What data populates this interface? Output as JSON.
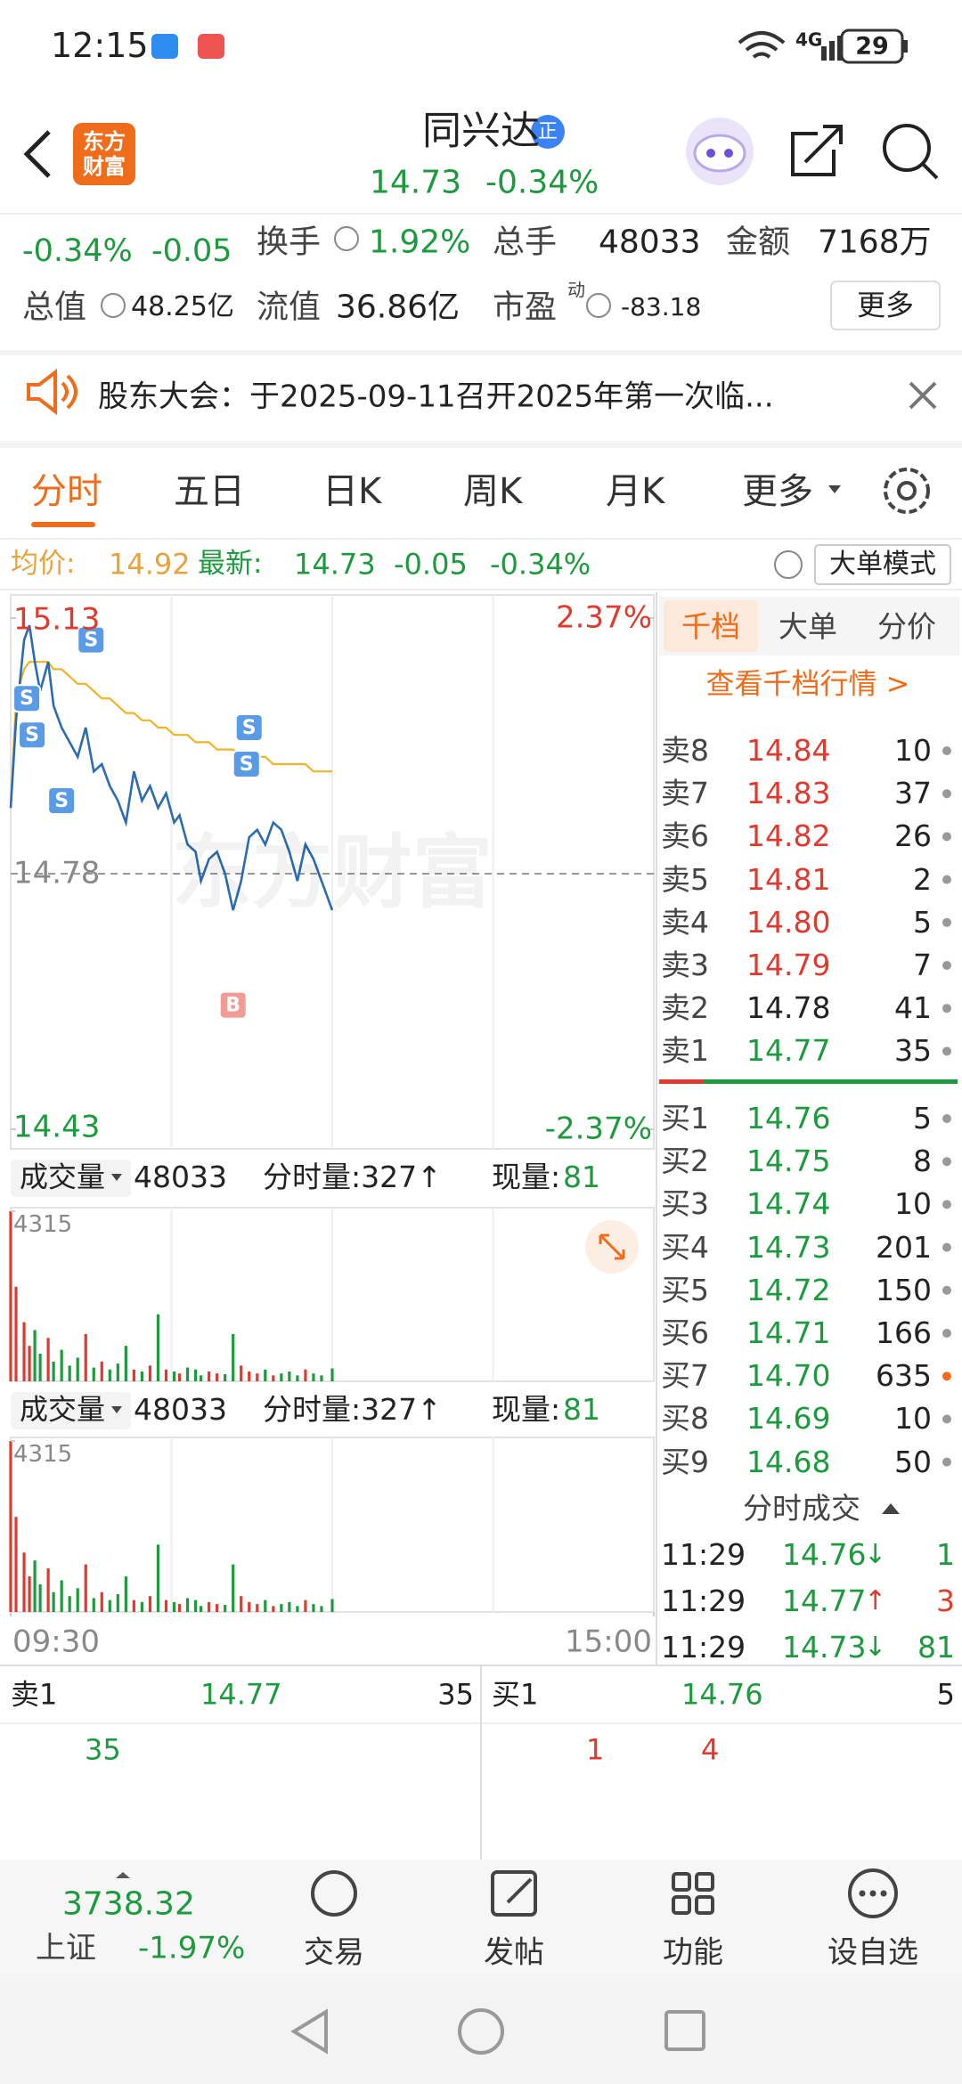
{
  "status_bar": {
    "time": "12:15",
    "network": "4G",
    "battery": "29"
  },
  "header": {
    "logo": "东方财富",
    "title": "同兴达",
    "badge": "正",
    "price": "14.73",
    "change_pct": "-0.34%"
  },
  "stats": {
    "change_pct": "-0.34%",
    "change": "-0.05",
    "turnover_label": "换手",
    "turnover": "1.92%",
    "volume_label": "总手",
    "volume": "48033",
    "amount_label": "金额",
    "amount": "7168万",
    "market_cap_label": "总值",
    "market_cap": "48.25亿",
    "float_cap_label": "流值",
    "float_cap": "36.86亿",
    "pe_label": "市盈",
    "pe_note": "动",
    "pe": "-83.18",
    "more": "更多"
  },
  "notice": "股东大会：于2025-09-11召开2025年第一次临...",
  "tabs": [
    "分时",
    "五日",
    "日K",
    "周K",
    "月K",
    "更多"
  ],
  "quote_bar": {
    "avg_label": "均价:",
    "avg": "14.92",
    "last_label": "最新:",
    "last": "14.73",
    "change": "-0.05",
    "change_pct": "-0.34%",
    "mode": "大单模式"
  },
  "chart_watermark": "东方财富",
  "chart_data": [
    {
      "type": "line",
      "x": [
        0,
        2,
        5,
        7,
        9,
        11,
        14,
        16,
        19,
        22,
        25,
        28,
        31,
        34,
        37,
        40,
        43,
        46,
        49,
        52,
        55,
        58,
        61,
        63,
        66,
        69,
        71,
        74,
        77,
        80,
        83,
        86,
        89,
        92,
        95,
        98,
        101,
        104,
        107,
        110,
        113,
        116,
        120
      ],
      "series": [
        {
          "color": "#2b6cb0",
          "values": [
            14.87,
            14.99,
            15.1,
            15.12,
            15.07,
            15.03,
            15.07,
            15.01,
            14.98,
            14.96,
            14.94,
            14.98,
            14.92,
            14.93,
            14.9,
            14.88,
            14.85,
            14.92,
            14.88,
            14.9,
            14.87,
            14.89,
            14.85,
            14.86,
            14.82,
            14.81,
            14.77,
            14.8,
            14.81,
            14.78,
            14.73,
            14.77,
            14.83,
            14.84,
            14.82,
            14.85,
            14.84,
            14.81,
            14.77,
            14.82,
            14.8,
            14.77,
            14.73
          ]
        },
        {
          "color": "#f0b429",
          "values": [
            14.87,
            15.02,
            15.06,
            15.07,
            15.07,
            15.07,
            15.07,
            15.06,
            15.06,
            15.05,
            15.04,
            15.04,
            15.03,
            15.02,
            15.02,
            15.01,
            15.0,
            15.0,
            14.99,
            14.99,
            14.98,
            14.98,
            14.97,
            14.97,
            14.97,
            14.96,
            14.96,
            14.96,
            14.95,
            14.95,
            14.95,
            14.94,
            14.94,
            14.94,
            14.94,
            14.93,
            14.93,
            14.93,
            14.93,
            14.93,
            14.92,
            14.92,
            14.92
          ]
        }
      ],
      "xlim": [
        0,
        240
      ],
      "ylim": [
        14.43,
        15.13
      ],
      "yticks": [
        15.13,
        14.78,
        14.43
      ],
      "y2lim": [
        -2.37,
        2.37
      ],
      "y2ticks": [
        {
          "value": 2.37,
          "label": "2.37%"
        },
        {
          "value": -2.37,
          "label": "-2.37%"
        }
      ],
      "markers": [
        {
          "label": "S",
          "x": 6,
          "y": 15.02
        },
        {
          "label": "S",
          "x": 8,
          "y": 14.97
        },
        {
          "label": "S",
          "x": 19,
          "y": 14.88
        },
        {
          "label": "S",
          "x": 30,
          "y": 15.1
        },
        {
          "label": "S",
          "x": 89,
          "y": 14.98
        },
        {
          "label": "S",
          "x": 88,
          "y": 14.93
        },
        {
          "label": "B",
          "x": 83,
          "y": 14.6
        }
      ]
    },
    {
      "type": "bar",
      "title": "成交量",
      "total": "48033",
      "minute_volume": "分时量:327↑",
      "current_label": "现量:",
      "current": "81",
      "x": [
        0,
        2,
        5,
        7,
        9,
        11,
        14,
        16,
        19,
        22,
        25,
        28,
        31,
        34,
        37,
        40,
        43,
        46,
        49,
        52,
        55,
        58,
        61,
        63,
        66,
        69,
        71,
        74,
        77,
        80,
        83,
        86,
        89,
        92,
        95,
        98,
        101,
        104,
        107,
        110,
        113,
        116,
        120
      ],
      "values": [
        4315,
        2400,
        1500,
        900,
        1300,
        700,
        1100,
        500,
        800,
        400,
        600,
        1200,
        350,
        500,
        300,
        450,
        900,
        300,
        250,
        400,
        1700,
        300,
        250,
        200,
        350,
        300,
        150,
        250,
        200,
        180,
        1200,
        400,
        250,
        200,
        300,
        150,
        200,
        250,
        150,
        300,
        200,
        150,
        327
      ],
      "up_color": "#e03a2f",
      "down_color": "#1d9a3e",
      "xlim": [
        0,
        240
      ],
      "ylim": [
        0,
        4315
      ],
      "yticks": [
        4315
      ]
    },
    {
      "type": "bar",
      "title": "成交量",
      "total": "48033",
      "minute_volume": "分时量:327↑",
      "current_label": "现量:",
      "current": "81",
      "x": [
        0,
        2,
        5,
        7,
        9,
        11,
        14,
        16,
        19,
        22,
        25,
        28,
        31,
        34,
        37,
        40,
        43,
        46,
        49,
        52,
        55,
        58,
        61,
        63,
        66,
        69,
        71,
        74,
        77,
        80,
        83,
        86,
        89,
        92,
        95,
        98,
        101,
        104,
        107,
        110,
        113,
        116,
        120
      ],
      "values": [
        4315,
        2400,
        1500,
        900,
        1300,
        700,
        1100,
        500,
        800,
        400,
        600,
        1200,
        350,
        500,
        300,
        450,
        900,
        300,
        250,
        400,
        1700,
        300,
        250,
        200,
        350,
        300,
        150,
        250,
        200,
        180,
        1200,
        400,
        250,
        200,
        300,
        150,
        200,
        250,
        150,
        300,
        200,
        150,
        327
      ],
      "up_color": "#e03a2f",
      "down_color": "#1d9a3e",
      "xlim": [
        0,
        240
      ],
      "ylim": [
        0,
        4315
      ],
      "yticks": [
        4315
      ],
      "xticks": [
        {
          "value": 0,
          "label": "09:30"
        },
        {
          "value": 240,
          "label": "15:00"
        }
      ]
    }
  ],
  "order_book": {
    "tabs": [
      "千档",
      "大单",
      "分价"
    ],
    "link": "查看千档行情 >",
    "asks": [
      {
        "label": "卖8",
        "price": "14.84",
        "qty": "10"
      },
      {
        "label": "卖7",
        "price": "14.83",
        "qty": "37"
      },
      {
        "label": "卖6",
        "price": "14.82",
        "qty": "26"
      },
      {
        "label": "卖5",
        "price": "14.81",
        "qty": "2"
      },
      {
        "label": "卖4",
        "price": "14.80",
        "qty": "5"
      },
      {
        "label": "卖3",
        "price": "14.79",
        "qty": "7"
      },
      {
        "label": "卖2",
        "price": "14.78",
        "qty": "41"
      },
      {
        "label": "卖1",
        "price": "14.77",
        "qty": "35"
      }
    ],
    "bids": [
      {
        "label": "买1",
        "price": "14.76",
        "qty": "5"
      },
      {
        "label": "买2",
        "price": "14.75",
        "qty": "8"
      },
      {
        "label": "买3",
        "price": "14.74",
        "qty": "10"
      },
      {
        "label": "买4",
        "price": "14.73",
        "qty": "201"
      },
      {
        "label": "买5",
        "price": "14.72",
        "qty": "150"
      },
      {
        "label": "买6",
        "price": "14.71",
        "qty": "166"
      },
      {
        "label": "买7",
        "price": "14.70",
        "qty": "635",
        "highlight": true
      },
      {
        "label": "买8",
        "price": "14.69",
        "qty": "10"
      },
      {
        "label": "买9",
        "price": "14.68",
        "qty": "50"
      }
    ]
  },
  "trades": {
    "title": "分时成交",
    "rows": [
      {
        "time": "11:29",
        "price": "14.76",
        "dir": "↓",
        "qty": "1"
      },
      {
        "time": "11:29",
        "price": "14.77",
        "dir": "↑",
        "qty": "3"
      },
      {
        "time": "11:29",
        "price": "14.73",
        "dir": "↓",
        "qty": "81"
      }
    ]
  },
  "bottom_quote": {
    "ask": {
      "label": "卖1",
      "price": "14.77",
      "qty": "35"
    },
    "bid": {
      "label": "买1",
      "price": "14.76",
      "qty": "5"
    },
    "ask_detail": [
      "35"
    ],
    "bid_detail": [
      "1",
      "4"
    ]
  },
  "bottom_nav": {
    "index_value": "3738.32",
    "index_name": "上证",
    "index_change": "-1.97%",
    "items": [
      "交易",
      "发帖",
      "功能",
      "设自选"
    ]
  }
}
